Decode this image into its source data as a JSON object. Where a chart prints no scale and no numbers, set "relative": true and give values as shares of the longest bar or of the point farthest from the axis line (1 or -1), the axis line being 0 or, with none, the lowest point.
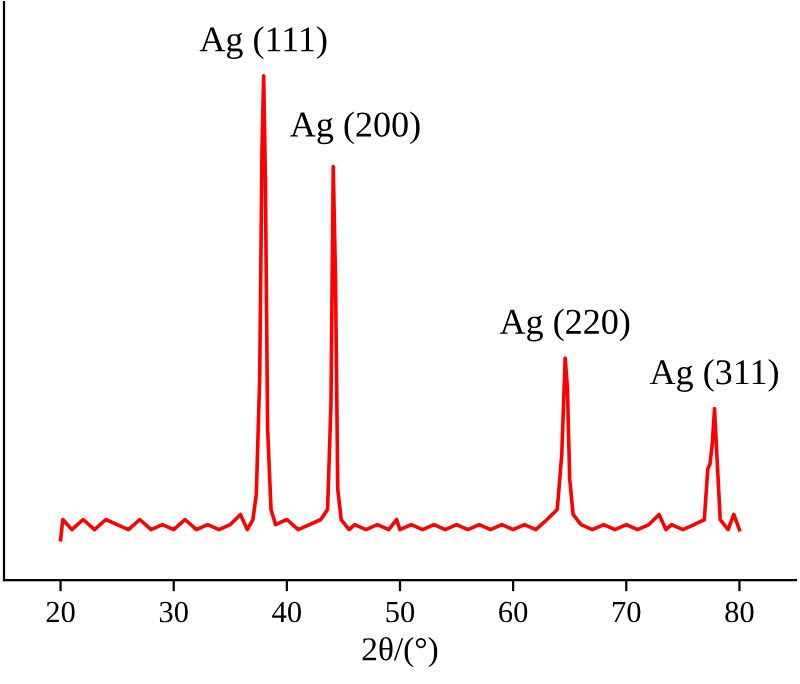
{
  "chart_data": {
    "type": "line",
    "relative": true,
    "xlabel": "2θ/(°)",
    "xlim": [
      15,
      85
    ],
    "xticks": [
      20,
      30,
      40,
      50,
      60,
      70,
      80
    ],
    "grid": false,
    "legend": false,
    "marker": "none",
    "line_style": "solid",
    "series": [
      {
        "color": "#ff0000",
        "x": [
          20.0,
          20.2,
          21,
          22,
          23,
          24,
          25,
          26,
          27,
          28,
          29,
          30,
          31,
          32,
          33,
          34,
          35,
          35.9,
          36.5,
          37.0,
          37.3,
          37.6,
          37.8,
          37.95,
          38.1,
          38.3,
          38.6,
          39,
          40,
          41,
          42,
          43,
          43.6,
          43.9,
          44.1,
          44.3,
          44.5,
          44.8,
          45.5,
          46,
          47,
          48,
          49,
          49.7,
          50,
          51,
          52,
          53,
          54,
          55,
          56,
          57,
          58,
          59,
          60,
          61,
          62,
          63,
          63.9,
          64.3,
          64.6,
          64.8,
          65.0,
          65.3,
          66,
          67,
          68,
          69,
          70,
          71,
          72,
          72.9,
          73.5,
          74,
          75,
          76,
          76.9,
          77.2,
          77.4,
          77.6,
          77.8,
          78.0,
          78.3,
          79,
          79.5,
          80
        ],
        "values": [
          0.08,
          0.12,
          0.1,
          0.12,
          0.1,
          0.12,
          0.11,
          0.1,
          0.12,
          0.1,
          0.11,
          0.1,
          0.12,
          0.1,
          0.11,
          0.1,
          0.11,
          0.13,
          0.1,
          0.12,
          0.17,
          0.4,
          0.85,
          1.0,
          0.8,
          0.3,
          0.14,
          0.11,
          0.12,
          0.1,
          0.11,
          0.12,
          0.14,
          0.35,
          0.82,
          0.6,
          0.18,
          0.12,
          0.1,
          0.11,
          0.1,
          0.11,
          0.1,
          0.12,
          0.1,
          0.11,
          0.1,
          0.11,
          0.1,
          0.11,
          0.1,
          0.11,
          0.1,
          0.11,
          0.1,
          0.11,
          0.1,
          0.12,
          0.14,
          0.25,
          0.44,
          0.38,
          0.2,
          0.13,
          0.11,
          0.1,
          0.11,
          0.1,
          0.11,
          0.1,
          0.11,
          0.13,
          0.1,
          0.11,
          0.1,
          0.11,
          0.12,
          0.22,
          0.23,
          0.27,
          0.34,
          0.25,
          0.12,
          0.1,
          0.13,
          0.1
        ]
      }
    ],
    "annotations": [
      {
        "text": "Ag (111)",
        "x": 37.95,
        "y": 1.0
      },
      {
        "text": "Ag (200)",
        "x": 44.1,
        "y": 0.82
      },
      {
        "text": "Ag (220)",
        "x": 64.6,
        "y": 0.44
      },
      {
        "text": "Ag (311)",
        "x": 77.8,
        "y": 0.34
      }
    ]
  }
}
